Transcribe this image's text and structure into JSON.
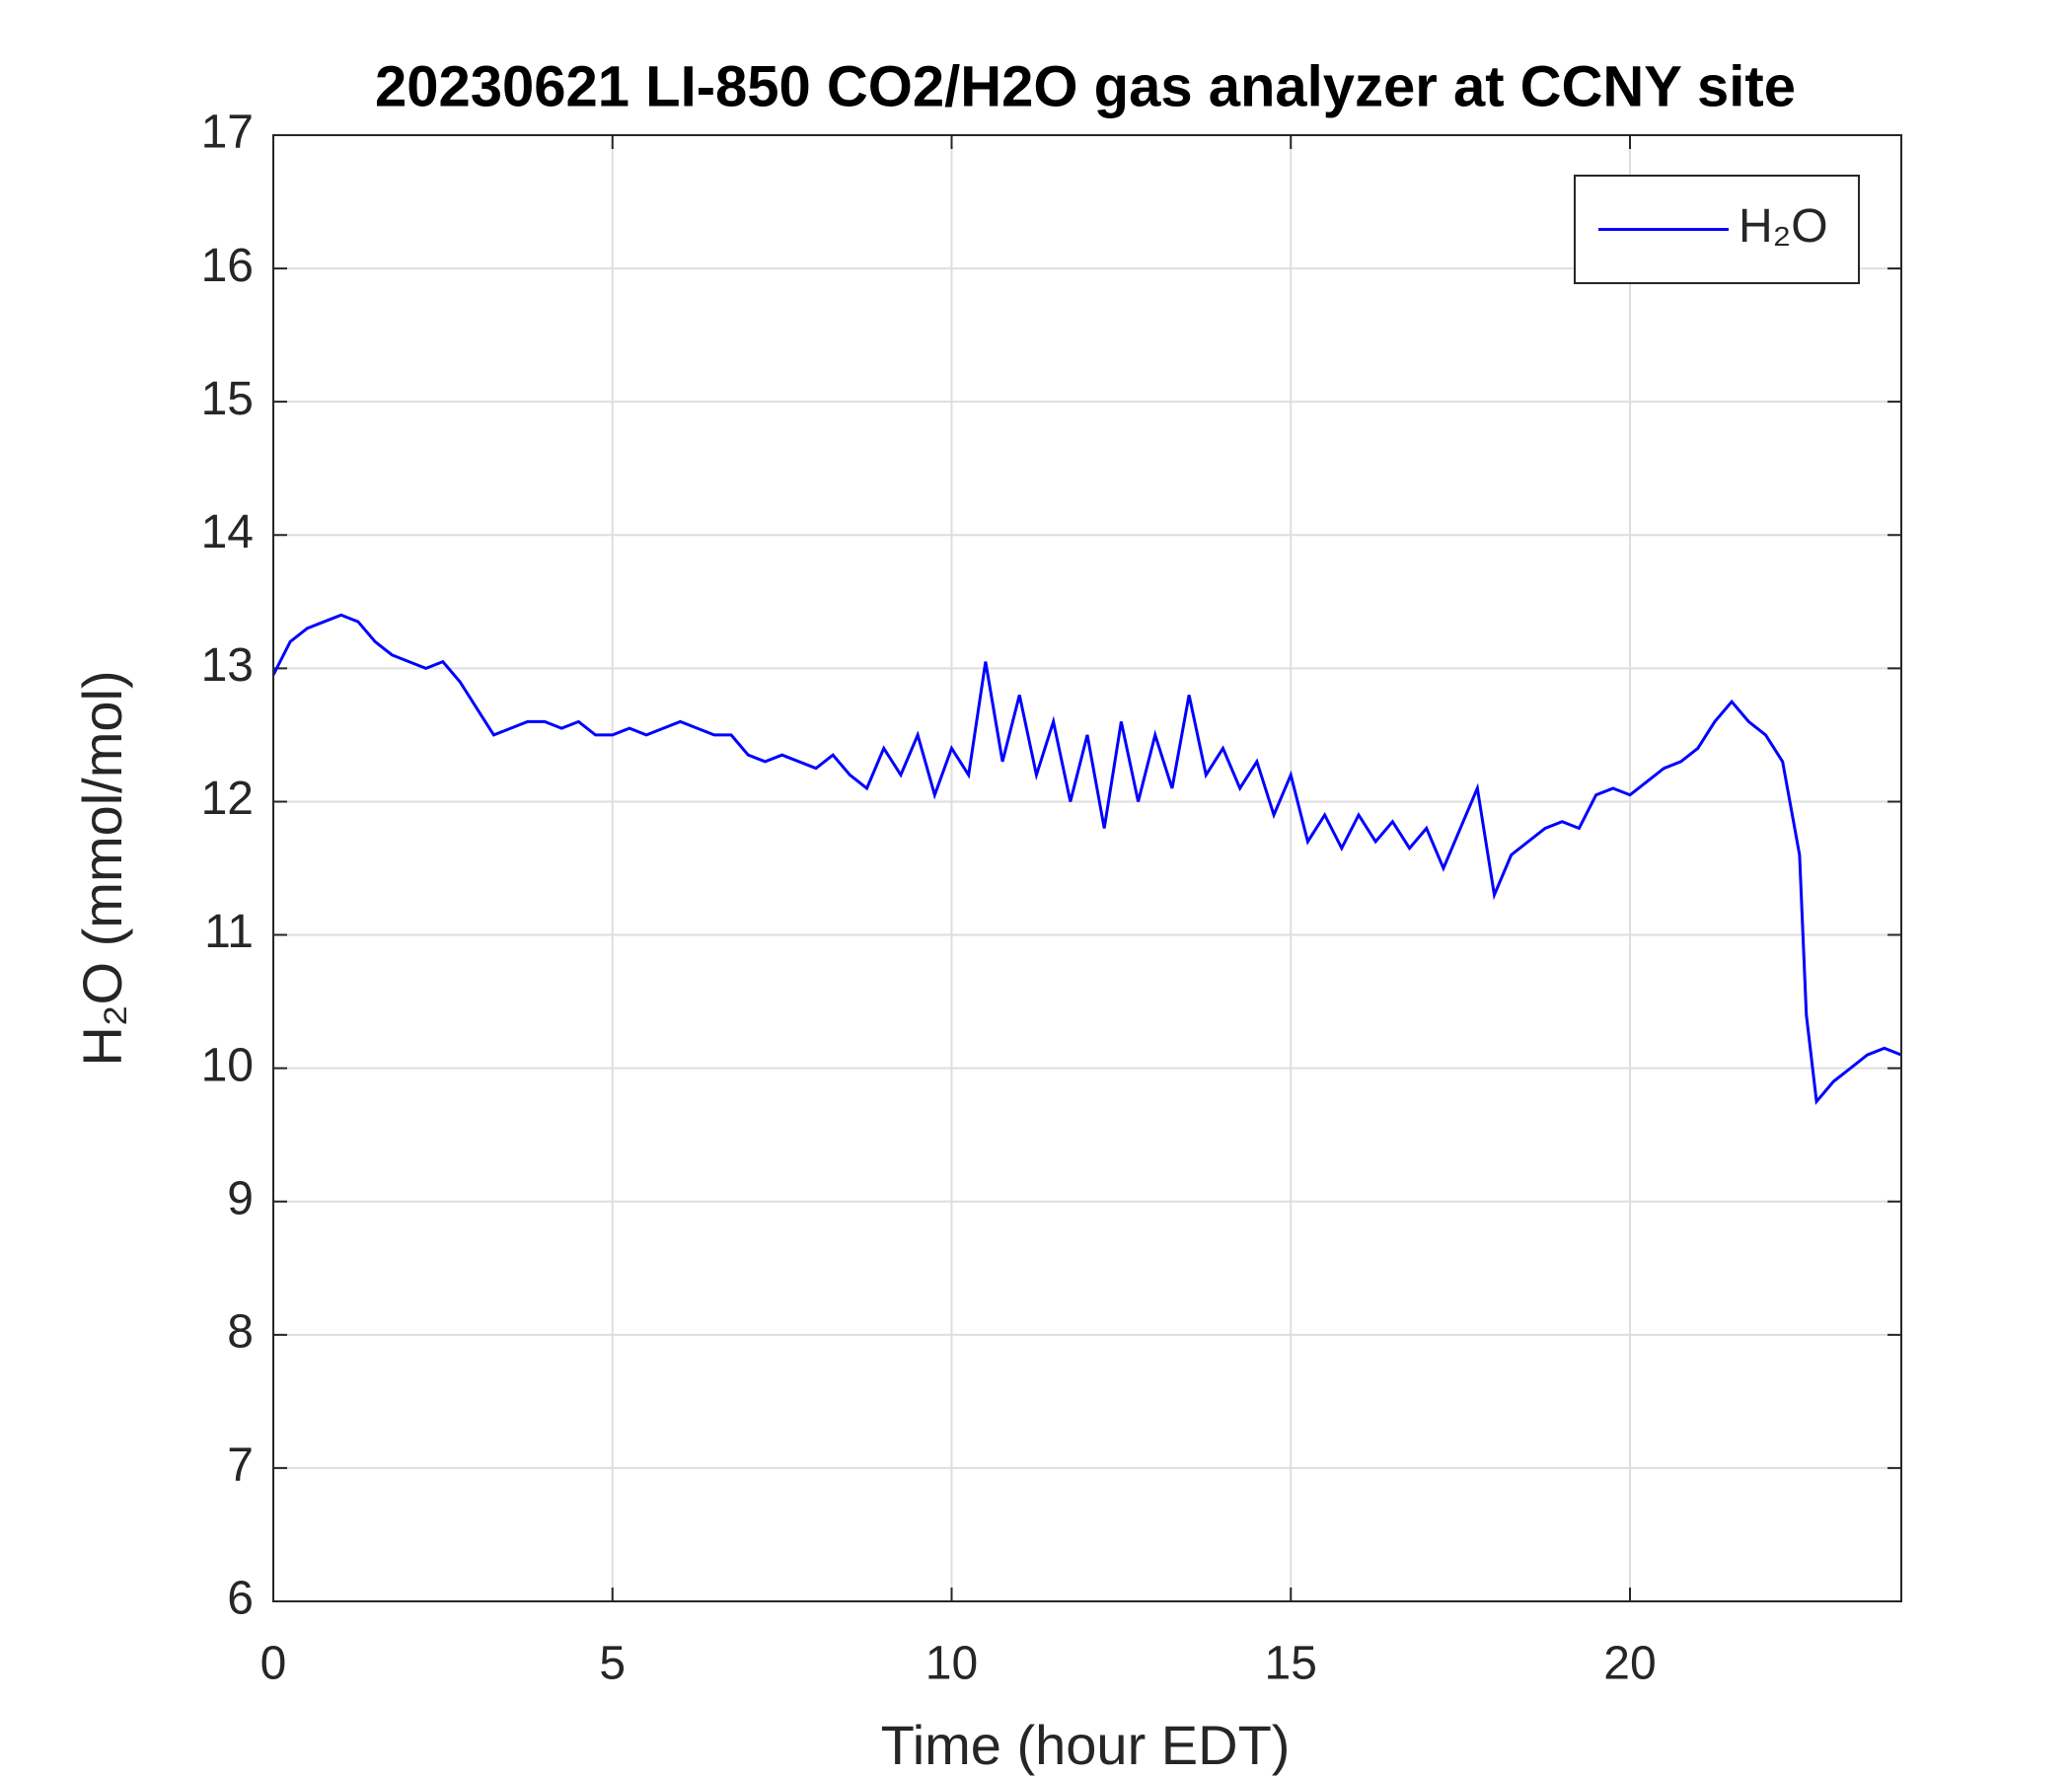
{
  "chart_data": {
    "type": "line",
    "title": "20230621 LI-850 CO2/H2O gas analyzer at CCNY site",
    "x_label": "Time (hour EDT)",
    "y_label": "H₂O (mmol/mol)",
    "xlim": [
      0,
      24
    ],
    "xticks": [
      0,
      5,
      10,
      15,
      20
    ],
    "ylim": [
      6,
      17
    ],
    "yticks": [
      6,
      7,
      8,
      9,
      10,
      11,
      12,
      13,
      14,
      15,
      16,
      17
    ],
    "grid": true,
    "legend_position": "upper right",
    "x": [
      0,
      0.25,
      0.5,
      0.75,
      1,
      1.25,
      1.5,
      1.75,
      2,
      2.25,
      2.5,
      2.75,
      3,
      3.25,
      3.5,
      3.75,
      4,
      4.25,
      4.5,
      4.75,
      5,
      5.25,
      5.5,
      5.75,
      6,
      6.25,
      6.5,
      6.75,
      7,
      7.25,
      7.5,
      7.75,
      8,
      8.25,
      8.5,
      8.75,
      9,
      9.25,
      9.5,
      9.75,
      10,
      10.25,
      10.5,
      10.75,
      11,
      11.25,
      11.5,
      11.75,
      12,
      12.25,
      12.5,
      12.75,
      13,
      13.25,
      13.5,
      13.75,
      14,
      14.25,
      14.5,
      14.75,
      15,
      15.25,
      15.5,
      15.75,
      16,
      16.25,
      16.5,
      16.75,
      17,
      17.25,
      17.5,
      17.75,
      18,
      18.25,
      18.5,
      18.75,
      19,
      19.25,
      19.5,
      19.75,
      20,
      20.25,
      20.5,
      20.75,
      21,
      21.25,
      21.5,
      21.75,
      22,
      22.25,
      22.5,
      22.6,
      22.75,
      23,
      23.25,
      23.5,
      23.75,
      24
    ],
    "series": [
      {
        "name": "H₂O",
        "color": "#0000ff",
        "values": [
          12.95,
          13.2,
          13.3,
          13.35,
          13.4,
          13.35,
          13.2,
          13.1,
          13.05,
          13.0,
          13.05,
          12.9,
          12.7,
          12.5,
          12.55,
          12.6,
          12.6,
          12.55,
          12.6,
          12.5,
          12.5,
          12.55,
          12.5,
          12.55,
          12.6,
          12.55,
          12.5,
          12.5,
          12.35,
          12.3,
          12.35,
          12.3,
          12.25,
          12.35,
          12.2,
          12.1,
          12.4,
          12.2,
          12.5,
          12.05,
          12.4,
          12.2,
          13.05,
          12.3,
          12.8,
          12.2,
          12.6,
          12.0,
          12.5,
          11.8,
          12.6,
          12.0,
          12.5,
          12.1,
          12.8,
          12.2,
          12.4,
          12.1,
          12.3,
          11.9,
          12.2,
          11.7,
          11.9,
          11.65,
          11.9,
          11.7,
          11.85,
          11.65,
          11.8,
          11.5,
          11.8,
          12.1,
          11.3,
          11.6,
          11.7,
          11.8,
          11.85,
          11.8,
          12.05,
          12.1,
          12.05,
          12.15,
          12.25,
          12.3,
          12.4,
          12.6,
          12.75,
          12.6,
          12.5,
          12.3,
          11.6,
          10.4,
          9.75,
          9.9,
          10.0,
          10.1,
          10.15,
          10.1
        ]
      }
    ]
  }
}
